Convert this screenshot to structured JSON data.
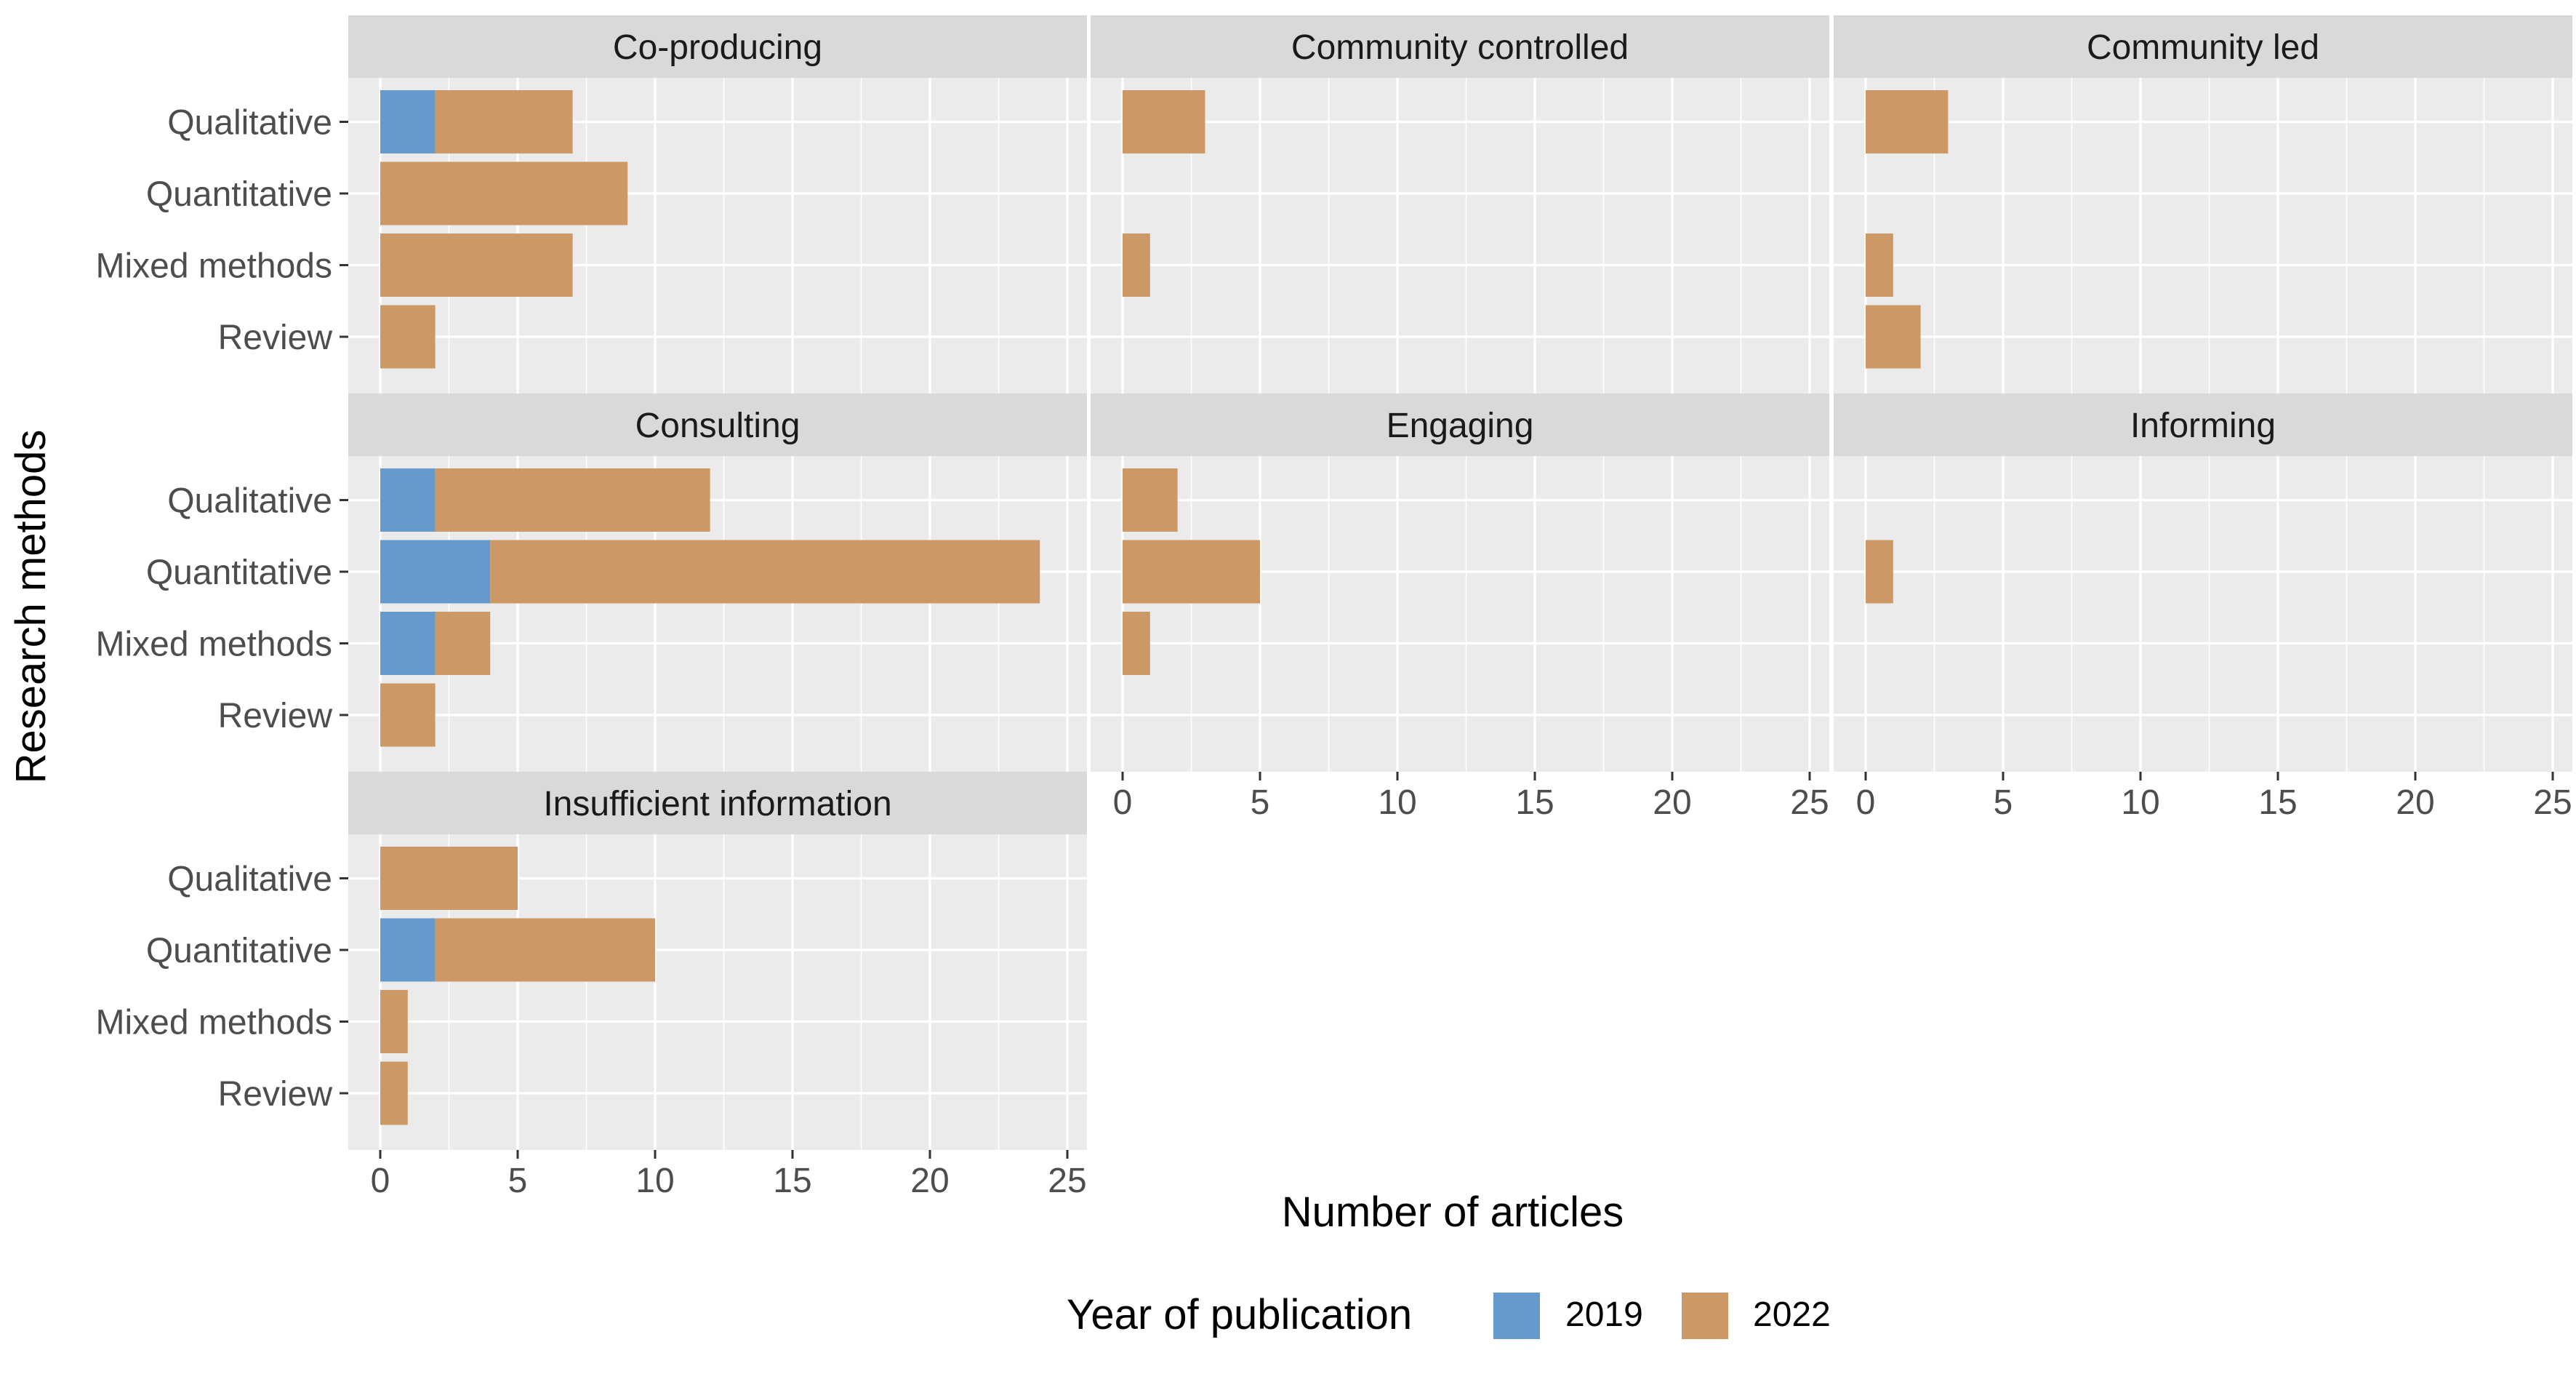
{
  "chart_data": {
    "type": "bar",
    "orientation": "horizontal",
    "stacked": true,
    "facet_layout": "3x3 wrap",
    "xlabel": "Number of articles",
    "ylabel": "Research methods",
    "xlim": [
      0,
      25
    ],
    "x_ticks": [
      "0",
      "5",
      "10",
      "15",
      "20",
      "25"
    ],
    "categories": [
      "Qualitative",
      "Quantitative",
      "Mixed methods",
      "Review"
    ],
    "grid": true,
    "legend": {
      "title": "Year of publication",
      "position": "bottom",
      "entries": [
        {
          "name": "2019",
          "color": "#6699CC"
        },
        {
          "name": "2022",
          "color": "#CC9966"
        }
      ]
    },
    "panels": [
      {
        "title": "Co-producing",
        "series": [
          {
            "name": "2019",
            "values": [
              2,
              0,
              0,
              0
            ]
          },
          {
            "name": "2022",
            "values": [
              5,
              9,
              7,
              2
            ]
          }
        ]
      },
      {
        "title": "Community controlled",
        "series": [
          {
            "name": "2019",
            "values": [
              0,
              0,
              0,
              0
            ]
          },
          {
            "name": "2022",
            "values": [
              3,
              0,
              1,
              0
            ]
          }
        ]
      },
      {
        "title": "Community led",
        "series": [
          {
            "name": "2019",
            "values": [
              0,
              0,
              0,
              0
            ]
          },
          {
            "name": "2022",
            "values": [
              3,
              0,
              1,
              2
            ]
          }
        ]
      },
      {
        "title": "Consulting",
        "series": [
          {
            "name": "2019",
            "values": [
              2,
              4,
              2,
              0
            ]
          },
          {
            "name": "2022",
            "values": [
              10,
              20,
              2,
              2
            ]
          }
        ]
      },
      {
        "title": "Engaging",
        "series": [
          {
            "name": "2019",
            "values": [
              0,
              0,
              0,
              0
            ]
          },
          {
            "name": "2022",
            "values": [
              2,
              5,
              1,
              0
            ]
          }
        ]
      },
      {
        "title": "Informing",
        "series": [
          {
            "name": "2019",
            "values": [
              0,
              0,
              0,
              0
            ]
          },
          {
            "name": "2022",
            "values": [
              0,
              1,
              0,
              0
            ]
          }
        ]
      },
      {
        "title": "Insufficient information",
        "series": [
          {
            "name": "2019",
            "values": [
              0,
              2,
              0,
              0
            ]
          },
          {
            "name": "2022",
            "values": [
              5,
              8,
              1,
              1
            ]
          }
        ]
      }
    ]
  }
}
